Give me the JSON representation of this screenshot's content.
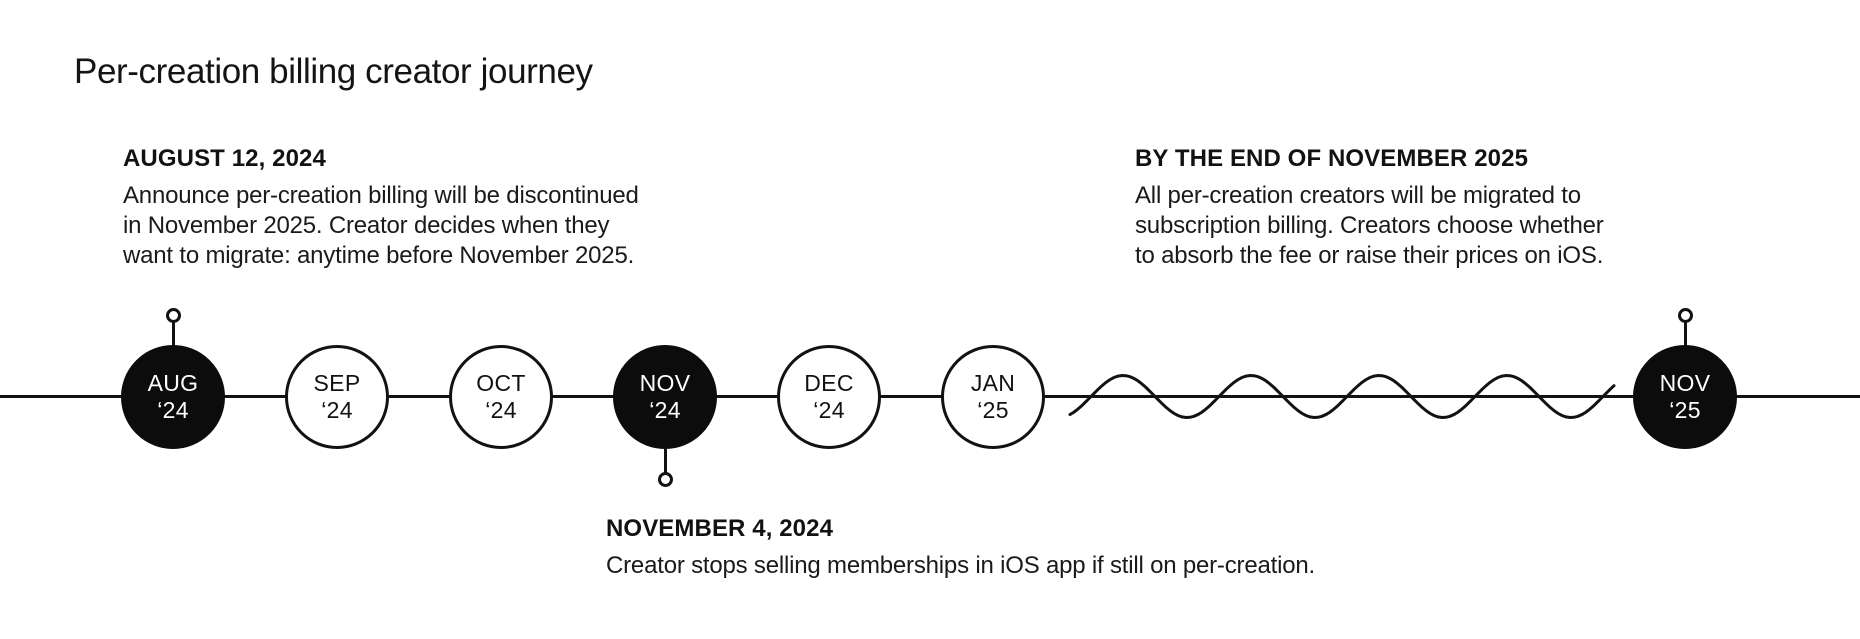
{
  "page": {
    "background_color": "#ffffff",
    "ink_color": "#121212",
    "title": "Per-creation billing creator journey"
  },
  "annotations": {
    "august": {
      "heading": "AUGUST 12, 2024",
      "lines": [
        "Announce per-creation billing will be discontinued",
        "in November 2025. Creator decides when they",
        "want to migrate: anytime before November 2025."
      ]
    },
    "november_end": {
      "heading": "BY THE END OF NOVEMBER 2025",
      "lines": [
        "All per-creation creators will be migrated to",
        "subscription billing. Creators choose whether",
        "to absorb the fee or raise their prices on iOS."
      ]
    },
    "november_4": {
      "heading": "NOVEMBER 4, 2024",
      "lines": [
        "Creator stops selling memberships in iOS app if still on per-creation."
      ]
    }
  },
  "timeline": {
    "milestones": [
      {
        "month": "AUG",
        "year": "‘24",
        "filled": true
      },
      {
        "month": "SEP",
        "year": "‘24",
        "filled": false
      },
      {
        "month": "OCT",
        "year": "‘24",
        "filled": false
      },
      {
        "month": "NOV",
        "year": "‘24",
        "filled": true
      },
      {
        "month": "DEC",
        "year": "‘24",
        "filled": false
      },
      {
        "month": "JAN",
        "year": "‘25",
        "filled": false
      },
      {
        "month": "NOV",
        "year": "‘25",
        "filled": true
      }
    ]
  }
}
